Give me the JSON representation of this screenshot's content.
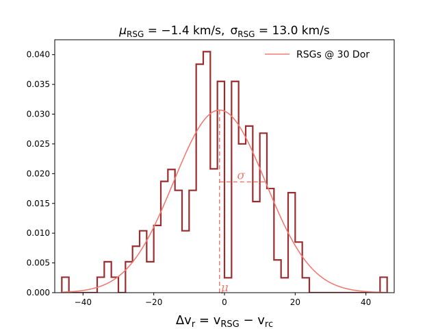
{
  "chart_data": {
    "type": "histogram",
    "title": {
      "mu_symbol": "μ",
      "mu_sub": "RSG",
      "mu_eq": " = −1.4 km/s,",
      "sigma_symbol": "σ",
      "sigma_sub": "RSG",
      "sigma_eq": " = 13.0 km/s"
    },
    "xlabel": {
      "main": "Δv",
      "sub1": "r",
      "eq": " = v",
      "sub2": "RSG",
      "minus": " − v",
      "sub3": "rc"
    },
    "ylabel": "",
    "xlim": [
      -48,
      48
    ],
    "ylim": [
      0,
      0.0425
    ],
    "xticks": [
      -40,
      -20,
      0,
      20,
      40
    ],
    "xtick_labels": [
      "−40",
      "−20",
      "0",
      "20",
      "40"
    ],
    "yticks": [
      0,
      0.005,
      0.01,
      0.015,
      0.02,
      0.025,
      0.03,
      0.035,
      0.04
    ],
    "ytick_labels": [
      "0.000",
      "0.005",
      "0.010",
      "0.015",
      "0.020",
      "0.025",
      "0.030",
      "0.035",
      "0.040"
    ],
    "histogram": {
      "bin_edges": [
        -46.0,
        -44.0,
        -42.0,
        -40.0,
        -38.0,
        -36.0,
        -34.0,
        -32.0,
        -30.0,
        -28.0,
        -26.0,
        -24.0,
        -22.0,
        -20.0,
        -18.0,
        -16.0,
        -14.0,
        -12.0,
        -10.0,
        -8.0,
        -6.0,
        -4.0,
        -2.0,
        0.0,
        2.0,
        4.0,
        6.0,
        8.0,
        10.0,
        12.0,
        14.0,
        16.0,
        18.0,
        20.0,
        22.0,
        24.0,
        26.0,
        28.0,
        30.0,
        32.0,
        34.0,
        36.0,
        38.0,
        40.0,
        42.0,
        44.0,
        46.0
      ],
      "density": [
        0.0026,
        0.0,
        0.0,
        0.0,
        0.0,
        0.0026,
        0.0052,
        0.0026,
        0.0,
        0.0052,
        0.0078,
        0.0104,
        0.0052,
        0.0113,
        0.0187,
        0.0207,
        0.0172,
        0.0104,
        0.0172,
        0.0384,
        0.0405,
        0.0208,
        0.0355,
        0.0025,
        0.0355,
        0.025,
        0.028,
        0.0153,
        0.0268,
        0.0175,
        0.0055,
        0.0025,
        0.0168,
        0.0085,
        0.0025,
        0.0,
        0.0,
        0.0,
        0.0,
        0.0,
        0.0,
        0.0,
        0.0,
        0.0,
        0.0,
        0.0026
      ],
      "color": "#9b2d30"
    },
    "gaussian": {
      "label": "RSGs @ 30 Dor",
      "mu": -1.4,
      "sigma": 13.0,
      "color": "#f07b72"
    },
    "annotations": {
      "mu_label": "μ",
      "sigma_label": "σ"
    },
    "legend_position": "top-right"
  }
}
